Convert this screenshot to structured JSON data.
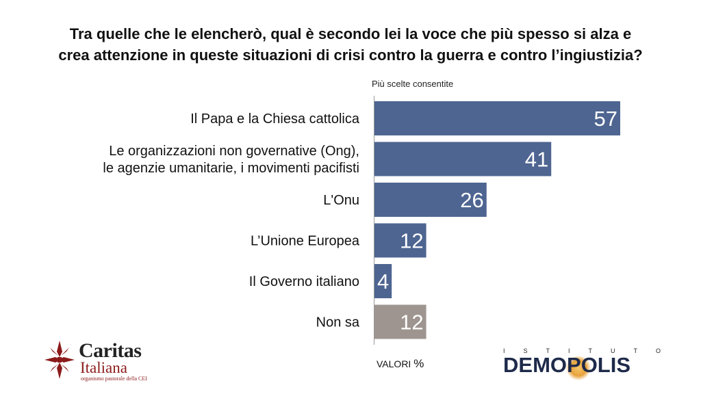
{
  "title_lines": [
    "Tra quelle che le elencherò, qual è secondo lei la voce che più spesso si alza e",
    "crea attenzione in queste situazioni di crisi contro la guerra e contro l’ingiustizia?"
  ],
  "subtitle": "Più scelte consentite",
  "chart_data": {
    "type": "bar",
    "orientation": "horizontal",
    "categories": [
      [
        "Il Papa e la Chiesa cattolica"
      ],
      [
        "Le organizzazioni non governative (Ong),",
        "le agenzie umanitarie, i movimenti pacifisti"
      ],
      [
        "L'Onu"
      ],
      [
        "L’Unione Europea"
      ],
      [
        "Il Governo italiano"
      ],
      [
        "Non sa"
      ]
    ],
    "values": [
      57,
      41,
      26,
      12,
      4,
      12
    ],
    "colors": [
      "#4e6591",
      "#4e6591",
      "#4e6591",
      "#4e6591",
      "#4e6591",
      "#9e9590"
    ],
    "xlim": [
      0,
      60
    ],
    "grid": false
  },
  "footer": {
    "valori_label": "VALORI",
    "valori_unit": "%"
  },
  "logos": {
    "caritas": {
      "name": "Caritas",
      "sub": "Italiana",
      "tag": "organismo pastorale della CEI",
      "color": "#8b1a1a"
    },
    "demopolis": {
      "prefix": [
        "I",
        "S",
        "T",
        "I",
        "T",
        "U",
        "T",
        "O"
      ],
      "word_a": "DEM",
      "word_o": "O",
      "word_b": "POLIS",
      "color": "#1e2a4a"
    }
  }
}
